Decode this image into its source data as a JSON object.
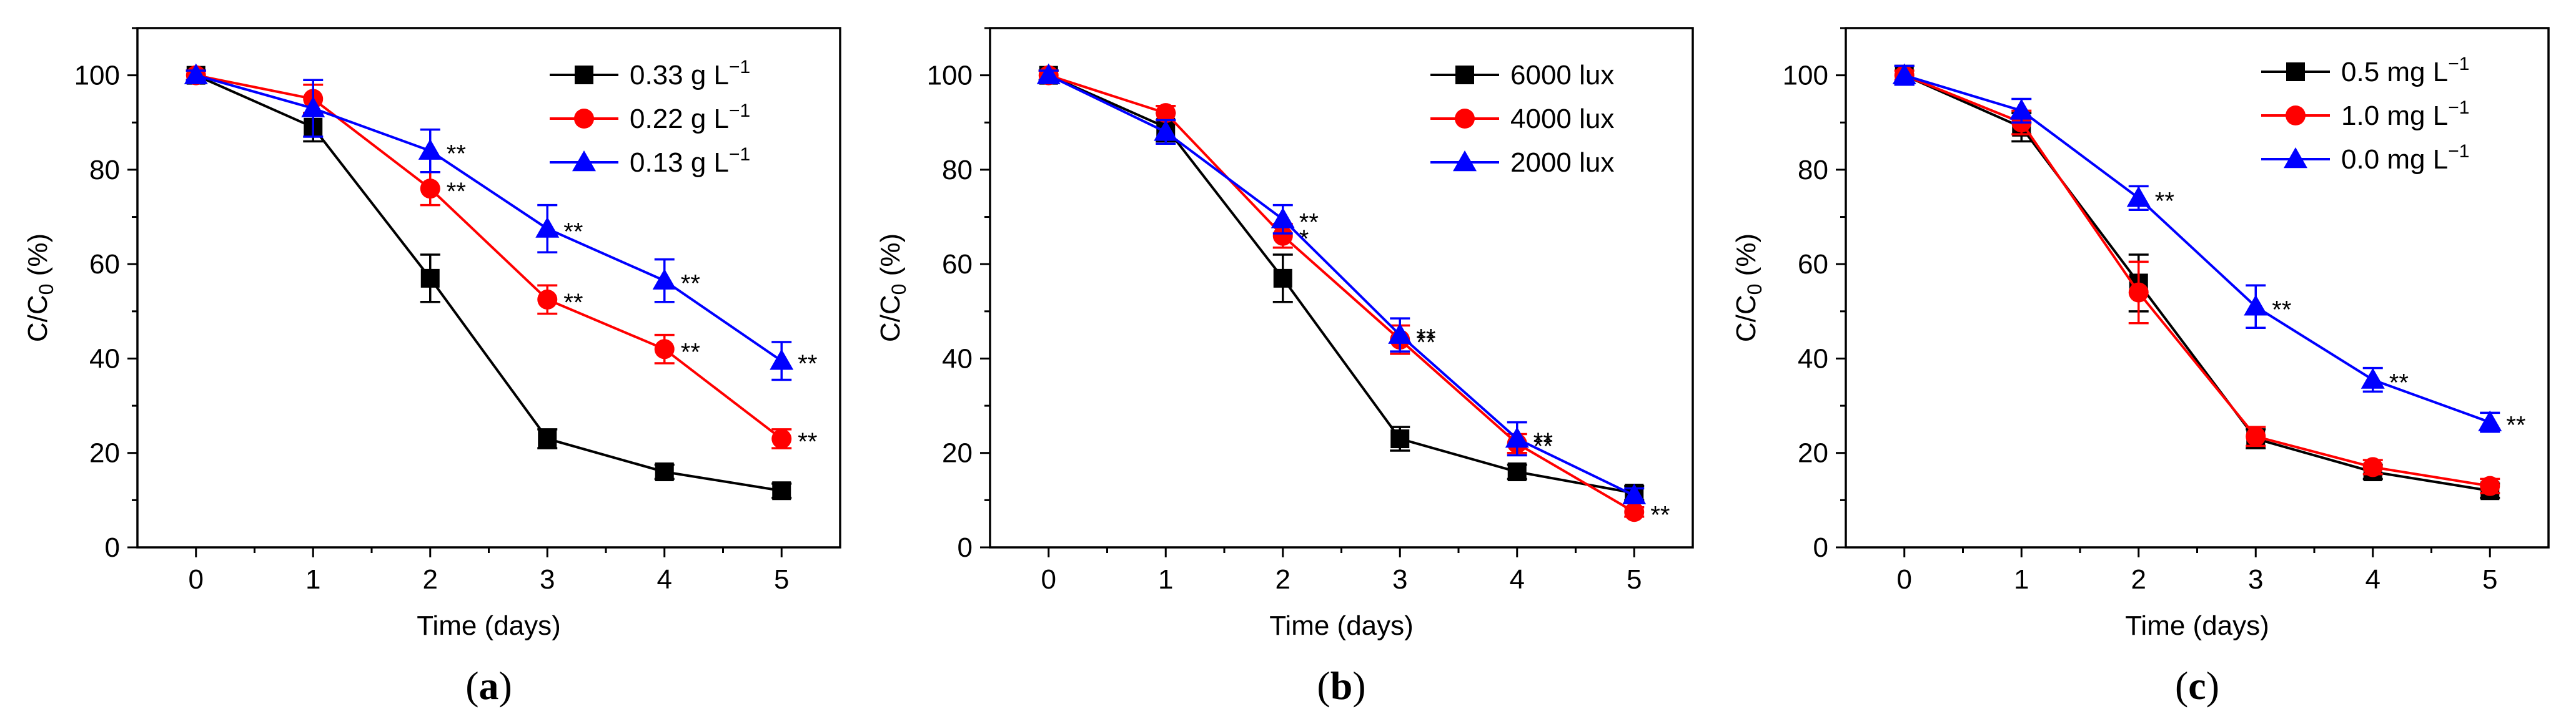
{
  "chart_data": [
    {
      "type": "line",
      "panel_label": "(a)",
      "panel_letter": "a",
      "xlabel": "Time (days)",
      "ylabel": "C/C",
      "ylabel_sub": "0",
      "ylabel_unit": "(%)",
      "xlim": [
        -0.5,
        5.5
      ],
      "ylim": [
        0,
        110
      ],
      "xticks": [
        0,
        1,
        2,
        3,
        4,
        5
      ],
      "yticks": [
        0,
        20,
        40,
        60,
        80,
        100
      ],
      "x": [
        0,
        1,
        2,
        3,
        4,
        5
      ],
      "series": [
        {
          "name": "0.33 g L",
          "unit_sup": "−1",
          "color": "#000000",
          "marker": "square",
          "values": [
            100,
            89,
            57,
            23,
            16,
            12
          ],
          "errors": [
            1,
            3,
            5,
            2,
            1.5,
            1.5
          ],
          "annotations": [
            "",
            "",
            "",
            "",
            "",
            ""
          ]
        },
        {
          "name": "0.22 g L",
          "unit_sup": "−1",
          "color": "#ff0000",
          "marker": "circle",
          "values": [
            100,
            95,
            76,
            52.5,
            42,
            23
          ],
          "errors": [
            1,
            3,
            3.5,
            3,
            3,
            2
          ],
          "annotations": [
            "",
            "",
            "**",
            "**",
            "**",
            "**"
          ]
        },
        {
          "name": "0.13 g L",
          "unit_sup": "−1",
          "color": "#0000ff",
          "marker": "triangle",
          "values": [
            100,
            93,
            84,
            67.5,
            56.5,
            39.5
          ],
          "errors": [
            1,
            6,
            4.5,
            5,
            4.5,
            4
          ],
          "annotations": [
            "",
            "",
            "**",
            "**",
            "**",
            "**"
          ]
        }
      ]
    },
    {
      "type": "line",
      "panel_label": "(b)",
      "panel_letter": "b",
      "xlabel": "Time (days)",
      "ylabel": "C/C",
      "ylabel_sub": "0",
      "ylabel_unit": "(%)",
      "xlim": [
        -0.5,
        5.5
      ],
      "ylim": [
        0,
        110
      ],
      "xticks": [
        0,
        1,
        2,
        3,
        4,
        5
      ],
      "yticks": [
        0,
        20,
        40,
        60,
        80,
        100
      ],
      "x": [
        0,
        1,
        2,
        3,
        4,
        5
      ],
      "series": [
        {
          "name": "6000 lux",
          "unit_sup": "",
          "color": "#000000",
          "marker": "square",
          "values": [
            100,
            89,
            57,
            23,
            16,
            11.5
          ],
          "errors": [
            1,
            3,
            5,
            2.5,
            1.5,
            1.5
          ],
          "annotations": [
            "",
            "",
            "",
            "",
            "",
            ""
          ]
        },
        {
          "name": "4000 lux",
          "unit_sup": "",
          "color": "#ff0000",
          "marker": "circle",
          "values": [
            100,
            92,
            66,
            44,
            22,
            7.5
          ],
          "errors": [
            1,
            1.5,
            2.5,
            3,
            2,
            1
          ],
          "annotations": [
            "",
            "",
            "*",
            "**",
            "**",
            "**"
          ]
        },
        {
          "name": "2000 lux",
          "unit_sup": "",
          "color": "#0000ff",
          "marker": "triangle",
          "values": [
            100,
            88,
            69.5,
            45,
            23,
            11
          ],
          "errors": [
            1,
            2.5,
            3,
            3.5,
            3.5,
            1.5
          ],
          "annotations": [
            "",
            "",
            "**",
            "**",
            "**",
            ""
          ]
        }
      ]
    },
    {
      "type": "line",
      "panel_label": "(c)",
      "panel_letter": "c",
      "xlabel": "Time (days)",
      "ylabel": "C/C",
      "ylabel_sub": "0",
      "ylabel_unit": "(%)",
      "xlim": [
        -0.5,
        5.5
      ],
      "ylim": [
        0,
        110
      ],
      "xticks": [
        0,
        1,
        2,
        3,
        4,
        5
      ],
      "yticks": [
        0,
        20,
        40,
        60,
        80,
        100
      ],
      "x": [
        0,
        1,
        2,
        3,
        4,
        5
      ],
      "series": [
        {
          "name": "0.5 mg L",
          "unit_sup": "−1",
          "color": "#000000",
          "marker": "square",
          "values": [
            100,
            89,
            56,
            23,
            16,
            12
          ],
          "errors": [
            2,
            3,
            6,
            2,
            1.5,
            1.5
          ],
          "annotations": [
            "",
            "",
            "",
            "",
            "",
            ""
          ]
        },
        {
          "name": "1.0 mg L",
          "unit_sup": "−1",
          "color": "#ff0000",
          "marker": "circle",
          "values": [
            100,
            90,
            54,
            23.5,
            17,
            13
          ],
          "errors": [
            1,
            2.5,
            6.5,
            2,
            1.5,
            1.5
          ],
          "annotations": [
            "",
            "",
            "",
            "",
            "",
            ""
          ]
        },
        {
          "name": "0.0 mg L",
          "unit_sup": "−1",
          "color": "#0000ff",
          "marker": "triangle",
          "values": [
            100,
            92.5,
            74,
            51,
            35.5,
            26.5
          ],
          "errors": [
            2,
            2.5,
            2.5,
            4.5,
            2.5,
            2
          ],
          "annotations": [
            "",
            "",
            "**",
            "**",
            "**",
            "**"
          ]
        }
      ]
    }
  ]
}
